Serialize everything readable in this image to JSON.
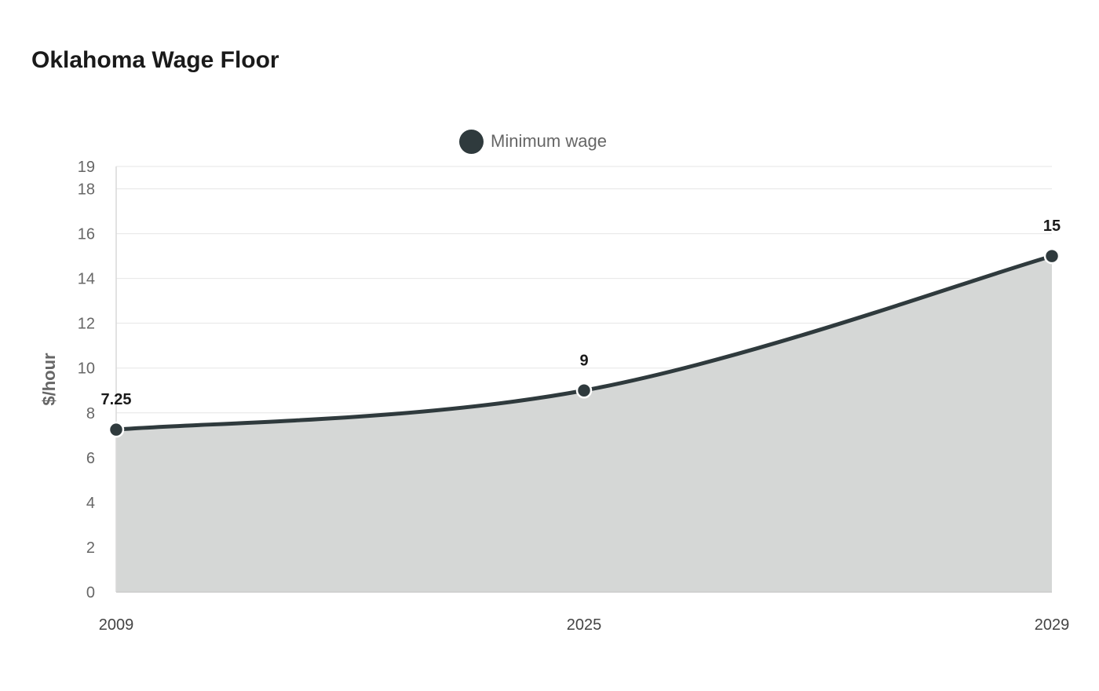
{
  "chart_data": {
    "type": "area",
    "title": "Oklahoma Wage Floor",
    "ylabel": "$/hour",
    "xlabel": "",
    "categories": [
      "2009",
      "2025",
      "2029"
    ],
    "series": [
      {
        "name": "Minimum wage",
        "values": [
          7.25,
          9,
          15
        ],
        "color": "#2f3a3d",
        "fill_color": "#d5d7d6"
      }
    ],
    "data_labels": [
      "7.25",
      "9",
      "15"
    ],
    "ylim": [
      0,
      19
    ],
    "yticks": [
      0,
      2,
      4,
      6,
      8,
      10,
      12,
      14,
      16,
      18,
      19
    ],
    "grid": true,
    "legend_position": "top-center"
  }
}
